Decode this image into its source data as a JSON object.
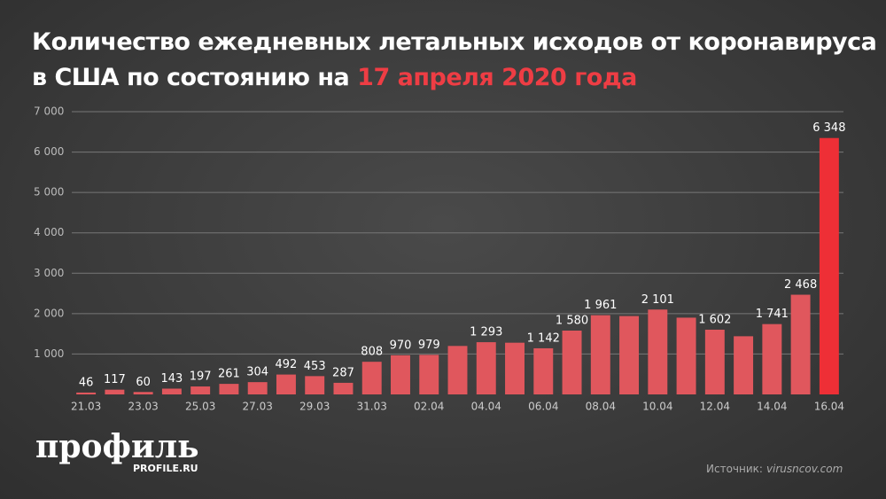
{
  "chart_data": {
    "type": "bar",
    "title": [
      "Количество ежедневных летальных исходов от коронавируса",
      "в США по состоянию на"
    ],
    "title_highlight": "17 апреля 2020 года",
    "categories": [
      "21.03",
      null,
      "23.03",
      null,
      "25.03",
      null,
      "27.03",
      null,
      "29.03",
      null,
      "31.03",
      null,
      "02.04",
      null,
      "04.04",
      null,
      "06.04",
      null,
      "08.04",
      null,
      "10.04",
      null,
      "12.04",
      null,
      "14.04",
      null,
      "16.04"
    ],
    "values": [
      46,
      117,
      60,
      143,
      197,
      261,
      304,
      492,
      453,
      287,
      808,
      970,
      979,
      1200,
      1293,
      1280,
      1142,
      1580,
      1961,
      1940,
      2101,
      1900,
      1602,
      1440,
      1741,
      2468,
      6348
    ],
    "value_labels": [
      "46",
      "117",
      "60",
      "143",
      "197",
      "261",
      "304",
      "492",
      "453",
      "287",
      "808",
      "970",
      "979",
      null,
      "1 293",
      null,
      "1 142",
      "1 580",
      "1 961",
      null,
      "2 101",
      null,
      "1 602",
      null,
      "1 741",
      "2 468",
      "6 348"
    ],
    "colors": [
      "#e0575d",
      "#e0575d",
      "#e0575d",
      "#e0575d",
      "#e0575d",
      "#e0575d",
      "#e0575d",
      "#e0575d",
      "#e0575d",
      "#e0575d",
      "#e0575d",
      "#e0575d",
      "#e0575d",
      "#e0575d",
      "#e0575d",
      "#e0575d",
      "#e0575d",
      "#e0575d",
      "#e0575d",
      "#e0575d",
      "#e0575d",
      "#e0575d",
      "#e0575d",
      "#e0575d",
      "#e0575d",
      "#e0575d",
      "#ee2f36"
    ],
    "ylim": [
      0,
      7000
    ],
    "yticks": [
      {
        "value": 1000,
        "label": "1 000"
      },
      {
        "value": 2000,
        "label": "2 000"
      },
      {
        "value": 3000,
        "label": "3 000"
      },
      {
        "value": 4000,
        "label": "4 000"
      },
      {
        "value": 5000,
        "label": "5 000"
      },
      {
        "value": 6000,
        "label": "6 000"
      },
      {
        "value": 7000,
        "label": "7 000"
      }
    ],
    "grid": true,
    "logo": "профиль",
    "logo_site": "PROFILE.RU",
    "source_label": "Источник:",
    "source": "virusncov.com"
  }
}
